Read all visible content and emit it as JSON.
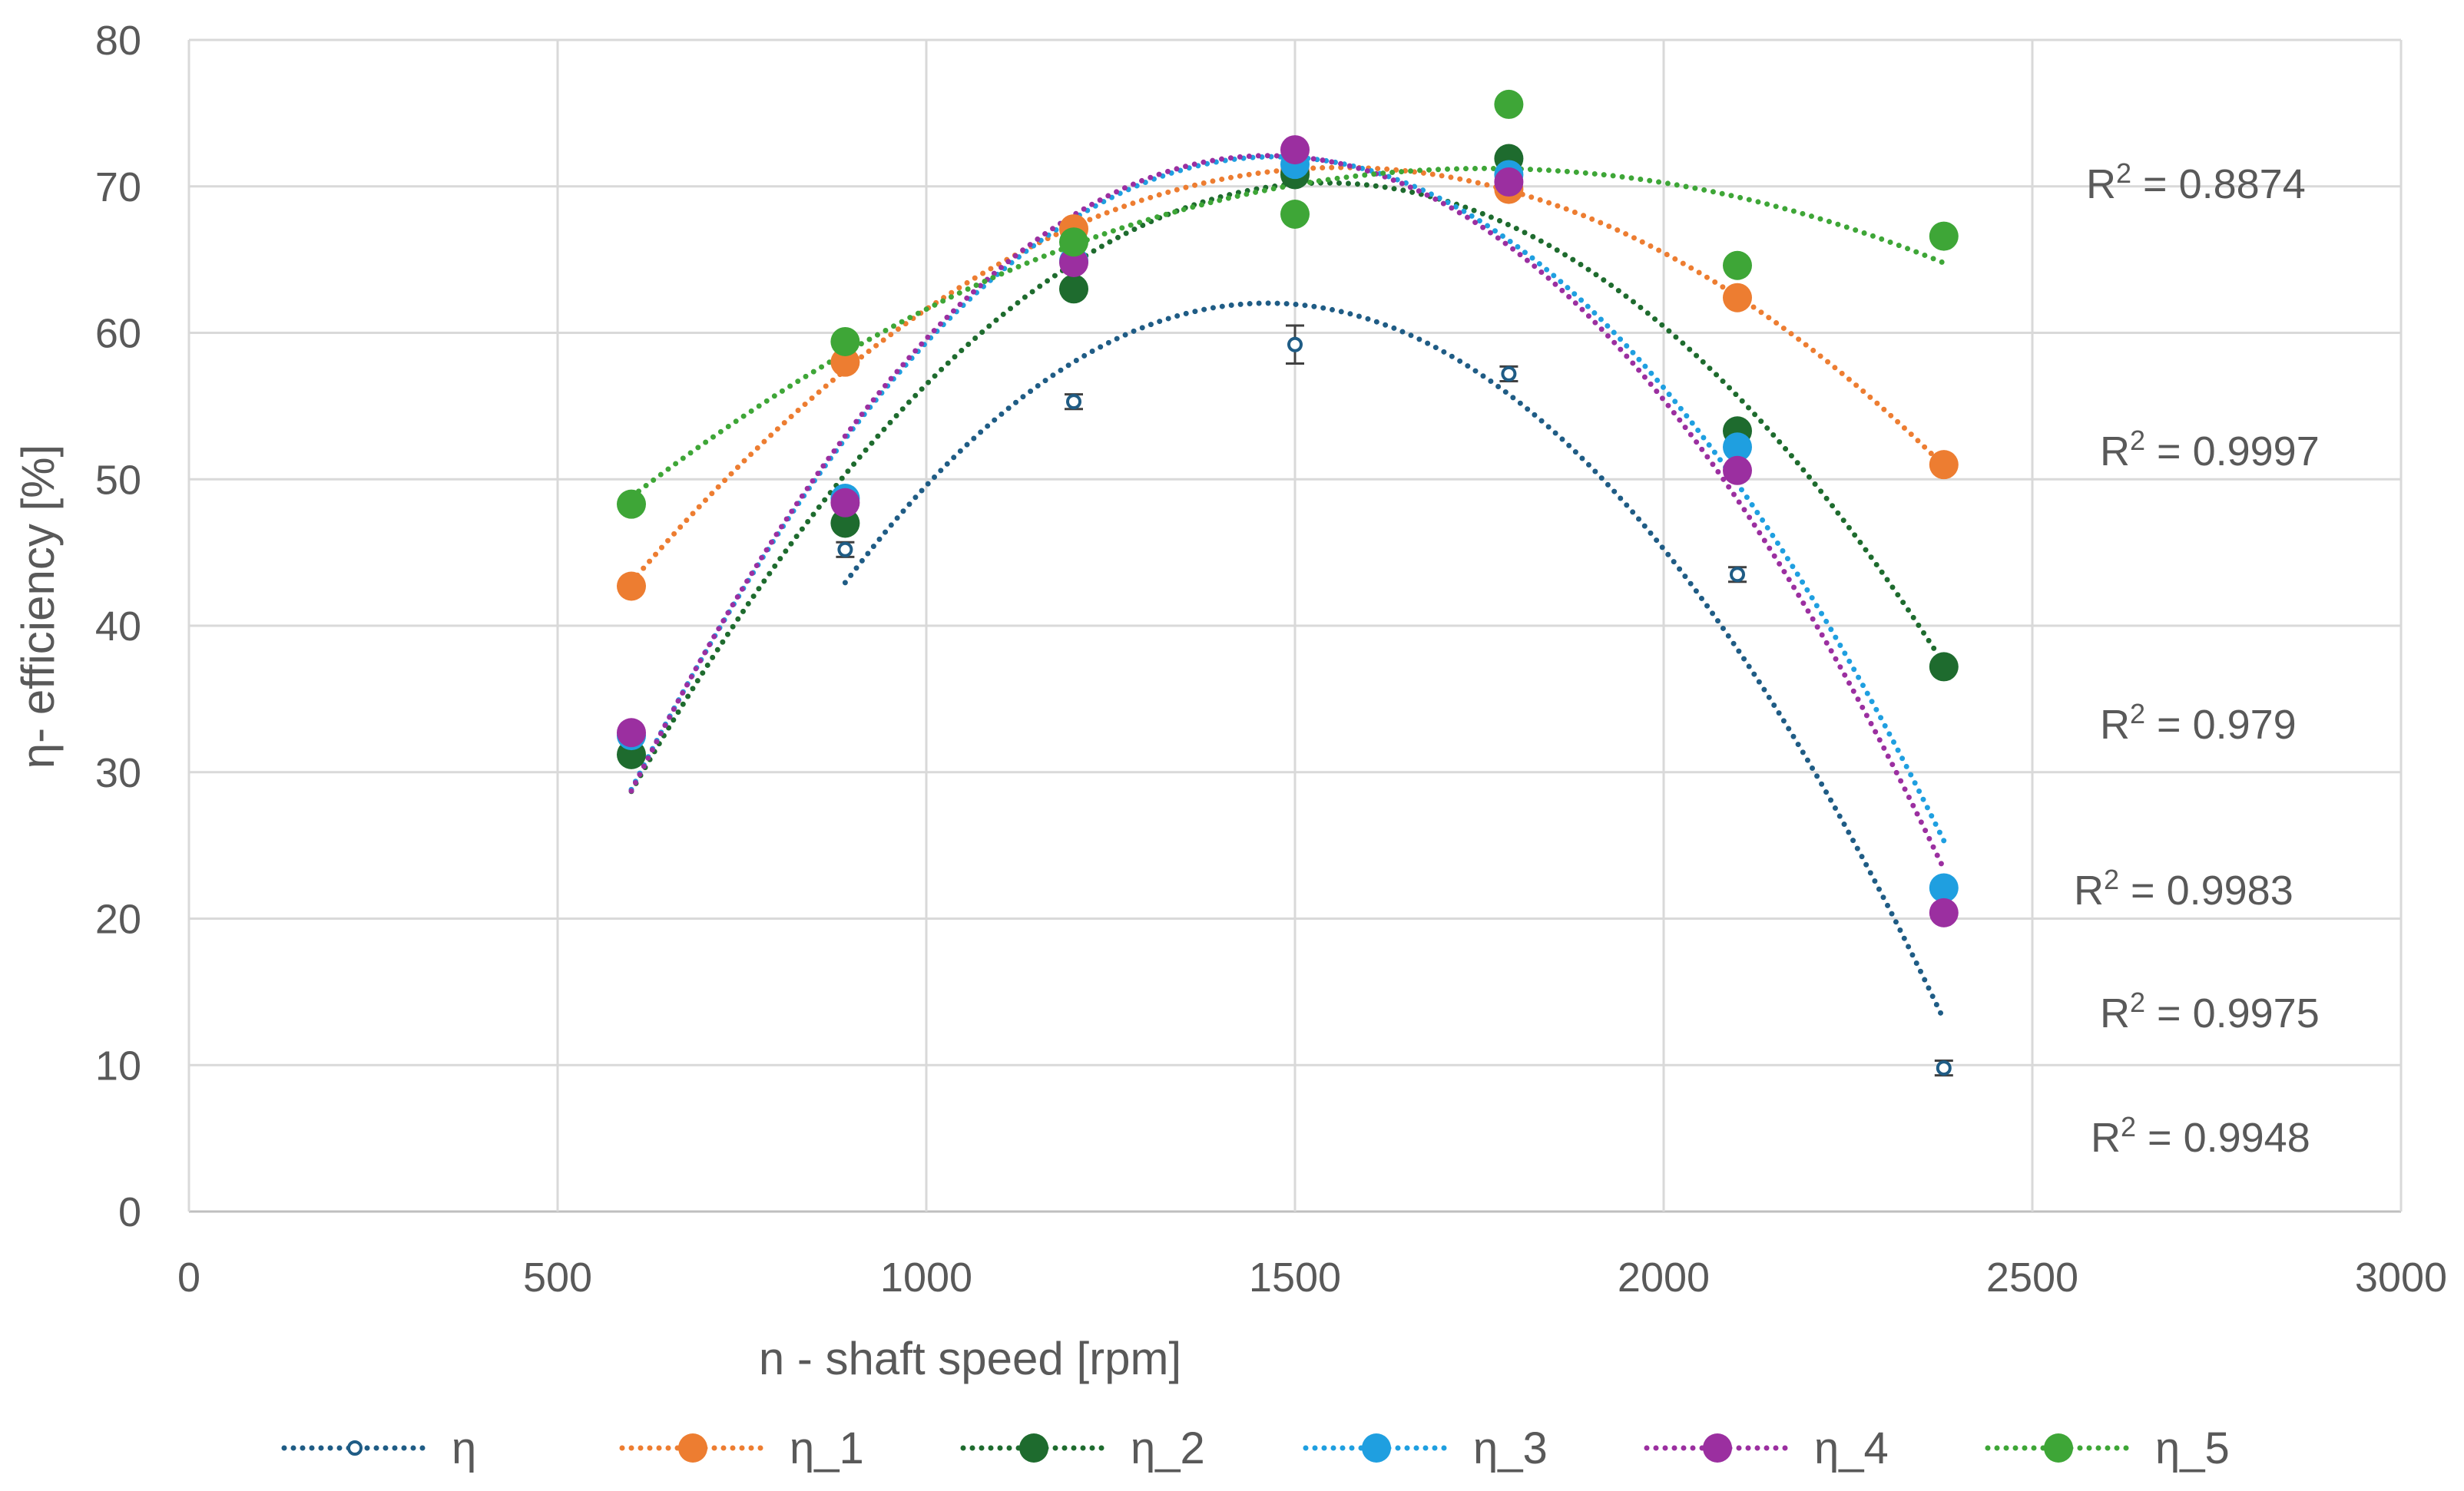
{
  "chart_data": {
    "type": "scatter",
    "xlabel": "n - shaft speed [rpm]",
    "ylabel": "η- efficiency [%]",
    "xlim": [
      0,
      3000
    ],
    "ylim": [
      0,
      80
    ],
    "x_ticks": [
      "0",
      "500",
      "1000",
      "1500",
      "2000",
      "2500",
      "3000"
    ],
    "y_ticks": [
      "0",
      "10",
      "20",
      "30",
      "40",
      "50",
      "60",
      "70",
      "80"
    ],
    "grid": true,
    "legend_position": "bottom",
    "trendline": "polynomial order 2, dotted",
    "x": [
      600,
      890,
      1200,
      1500,
      1790,
      2100,
      2380
    ],
    "series": [
      {
        "name": "η",
        "color": "#1f5c85",
        "marker": "small-open",
        "error_bars": true,
        "values": [
          null,
          45.2,
          55.3,
          59.2,
          57.2,
          43.5,
          9.8
        ]
      },
      {
        "name": "η_1",
        "color": "#ed7d31",
        "marker": "filled",
        "values": [
          42.7,
          58.0,
          67.1,
          71.0,
          69.8,
          62.4,
          51.0
        ]
      },
      {
        "name": "η_2",
        "color": "#1e6b2e",
        "marker": "filled",
        "values": [
          31.2,
          47.0,
          63.0,
          70.8,
          71.9,
          53.3,
          37.2
        ]
      },
      {
        "name": "η_3",
        "color": "#1f9fe0",
        "marker": "filled",
        "values": [
          32.5,
          48.7,
          64.9,
          71.5,
          70.8,
          52.2,
          22.1
        ]
      },
      {
        "name": "η_4",
        "color": "#9b2fa0",
        "marker": "filled",
        "values": [
          32.7,
          48.4,
          64.8,
          72.5,
          70.3,
          50.6,
          20.4
        ]
      },
      {
        "name": "η_5",
        "color": "#3ea637",
        "marker": "filled",
        "values": [
          48.3,
          59.4,
          66.2,
          68.1,
          75.6,
          64.6,
          66.6
        ]
      }
    ],
    "annotations": [
      {
        "text": "R² = 0.8874",
        "base": "R",
        "sup": "2",
        "rest": " = 0.8874"
      },
      {
        "text": "R² = 0.9997",
        "base": "R",
        "sup": "2",
        "rest": " = 0.9997"
      },
      {
        "text": "R² = 0.979",
        "base": "R",
        "sup": "2",
        "rest": " = 0.979"
      },
      {
        "text": "R² = 0.9983",
        "base": "R",
        "sup": "2",
        "rest": " = 0.9983"
      },
      {
        "text": "R² = 0.9975",
        "base": "R",
        "sup": "2",
        "rest": " = 0.9975"
      },
      {
        "text": "R² = 0.9948",
        "base": "R",
        "sup": "2",
        "rest": " = 0.9948"
      }
    ]
  }
}
